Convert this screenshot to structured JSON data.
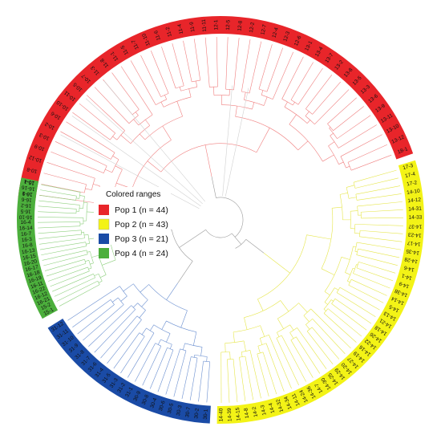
{
  "legend": {
    "title": "Colored ranges",
    "items": [
      {
        "label": "Pop 1 (n = 44)",
        "color": "#e8252a"
      },
      {
        "label": "Pop 2 (n = 43)",
        "color": "#f3f316"
      },
      {
        "label": "Pop 3 (n = 21)",
        "color": "#1a4ba6"
      },
      {
        "label": "Pop 4 (n = 24)",
        "color": "#4caf3c"
      }
    ]
  },
  "groups": [
    {
      "name": "pop1",
      "color": "#e8252a",
      "line_color": "#f08080",
      "leaves": [
        "10-1",
        "10-4",
        "10-8",
        "10-12",
        "10-9",
        "10-3",
        "10-2",
        "10-6",
        "10-10",
        "10-11",
        "10-5",
        "10-7",
        "11-3",
        "11-8",
        "11-1",
        "11-5",
        "11-7",
        "11-10",
        "11-6",
        "11-2",
        "11-4",
        "11-9",
        "11-11",
        "12-1",
        "12-5",
        "12-8",
        "12-2",
        "12-7",
        "12-4",
        "12-3",
        "12-6",
        "13-1",
        "13-4",
        "13-7",
        "13-2",
        "13-8",
        "13-5",
        "13-3",
        "13-6",
        "13-9",
        "13-11",
        "13-10",
        "13-12",
        "18-1"
      ]
    },
    {
      "name": "pop2",
      "color": "#f3f316",
      "line_color": "#e6e64a",
      "leaves": [
        "17-3",
        "17-4",
        "17-2",
        "14-10",
        "14-12",
        "14-31",
        "14-33",
        "14-37",
        "14-23",
        "14-17",
        "14-35",
        "14-28",
        "14-6",
        "14-1",
        "14-9",
        "14-38",
        "14-14",
        "14-5",
        "14-13",
        "14-21",
        "14-18",
        "14-26",
        "14-22",
        "14-16",
        "14-19",
        "14-27",
        "14-20",
        "14-29",
        "14-25",
        "14-30",
        "14-7",
        "14-36",
        "14-24",
        "14-11",
        "14-34",
        "14-32",
        "14-4",
        "14-3",
        "14-2",
        "14-8",
        "14-15",
        "14-39",
        "14-40"
      ]
    },
    {
      "name": "pop3",
      "color": "#1a4ba6",
      "line_color": "#6a8fd0",
      "leaves": [
        "30-1",
        "30-2",
        "30-7",
        "30-3",
        "30-5",
        "30-6",
        "30-4",
        "30-8",
        "30-9",
        "31-1",
        "31-2",
        "31-3",
        "31-5",
        "31-4",
        "31-6",
        "31-7",
        "31-8",
        "31-9",
        "31-10",
        "31-11",
        "31-12"
      ]
    },
    {
      "name": "pop4",
      "color": "#4caf3c",
      "line_color": "#8fd07f",
      "leaves": [
        "15-1",
        "15-2",
        "16-21",
        "16-12",
        "16-22",
        "16-11",
        "16-19",
        "16-18",
        "16-17",
        "16-20",
        "16-15",
        "16-13",
        "16-8",
        "16-3",
        "16-7",
        "16-14",
        "16-4",
        "16-10",
        "16-5",
        "16-2",
        "16-6",
        "16-9",
        "16-16",
        "16-1"
      ]
    }
  ]
}
